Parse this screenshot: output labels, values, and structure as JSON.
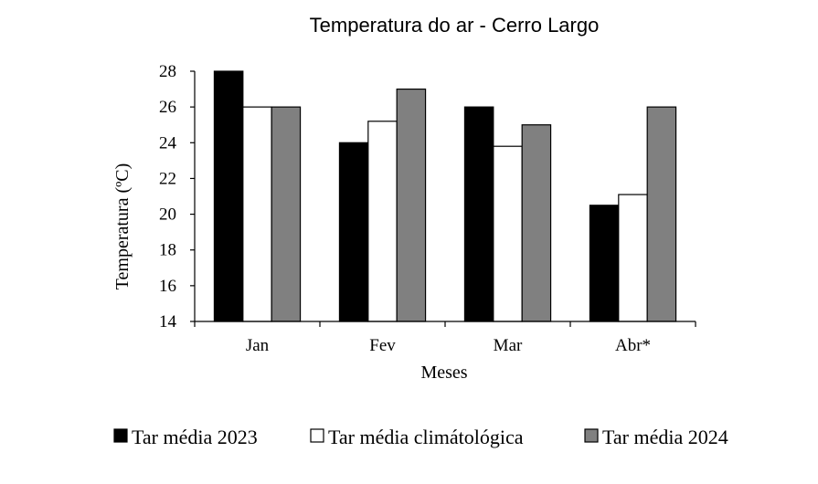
{
  "chart_data": {
    "type": "bar",
    "title": "Temperatura do ar - Cerro Largo",
    "xlabel": "Meses",
    "ylabel": "Temperatura (ºC)",
    "ylim": [
      14,
      28
    ],
    "yticks": [
      "14",
      "16",
      "18",
      "20",
      "22",
      "24",
      "26",
      "28"
    ],
    "categories": [
      "Jan",
      "Fev",
      "Mar",
      "Abr*"
    ],
    "series": [
      {
        "name": "Tar média 2023",
        "values": [
          28.0,
          24.0,
          26.0,
          20.5
        ],
        "color": "#000000"
      },
      {
        "name": "Tar média climátológica",
        "values": [
          26.0,
          25.2,
          23.8,
          21.1
        ],
        "color": "#ffffff"
      },
      {
        "name": "Tar média 2024",
        "values": [
          26.0,
          27.0,
          25.0,
          26.0
        ],
        "color": "#808080"
      }
    ],
    "grid": false,
    "legend_position": "bottom"
  }
}
